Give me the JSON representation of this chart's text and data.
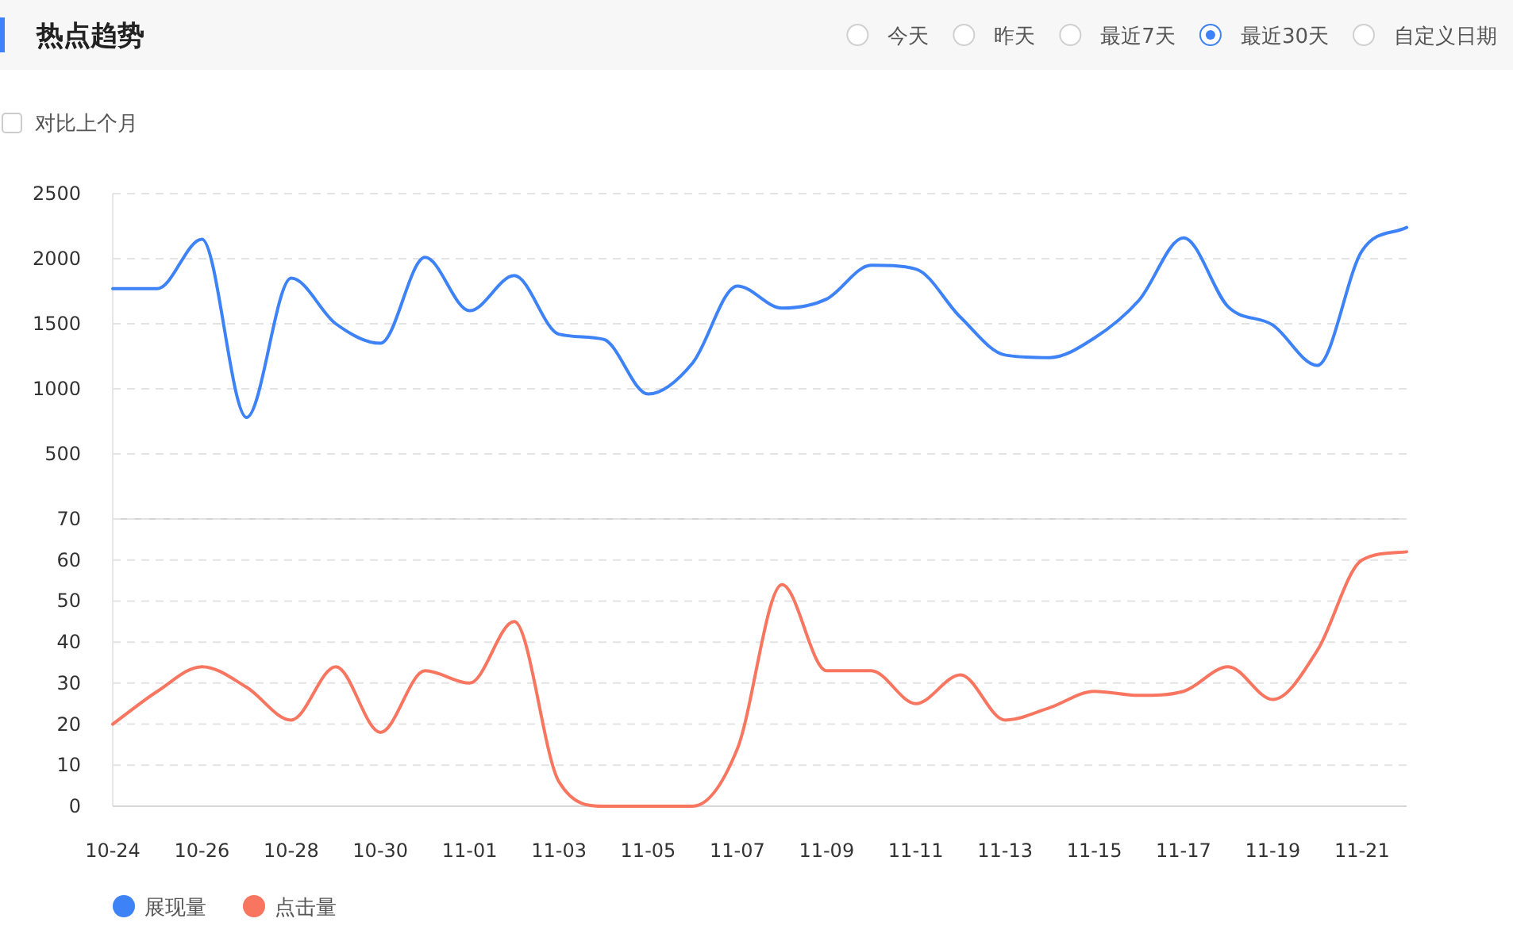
{
  "chart_data": [
    {
      "type": "line",
      "title": "热点趋势",
      "annotations": [
        "今天",
        "昨天",
        "最近7天",
        "最近30天",
        "自定义日期",
        "对比上个月"
      ],
      "series": [
        {
          "name": "展现量",
          "color": "#3d82f7",
          "values": [
            1770,
            1770,
            2150,
            780,
            1850,
            1500,
            1350,
            2010,
            1600,
            1870,
            1420,
            1380,
            960,
            1200,
            1790,
            1620,
            1690,
            1950,
            1920,
            1550,
            1260,
            1240,
            1390,
            1680,
            2160,
            1630,
            1490,
            1180,
            2060,
            2240
          ]
        }
      ],
      "ylim": [
        0,
        2500
      ],
      "yticks": [
        500,
        1000,
        1500,
        2000,
        2500
      ],
      "grid": "y",
      "legend": "bottom",
      "tick_labels": "y"
    },
    {
      "type": "line",
      "categories": [
        "10-24",
        null,
        "10-26",
        null,
        "10-28",
        null,
        "10-30",
        null,
        "11-01",
        null,
        "11-03",
        null,
        "11-05",
        null,
        "11-07",
        null,
        "11-09",
        null,
        "11-11",
        null,
        "11-13",
        null,
        "11-15",
        null,
        "11-17",
        null,
        "11-19",
        null,
        "11-21",
        null
      ],
      "series": [
        {
          "name": "点击量",
          "color": "#f87560",
          "values": [
            20,
            28,
            34,
            29,
            21,
            34,
            18,
            33,
            30,
            45,
            6,
            0,
            0,
            0,
            14,
            54,
            33,
            33,
            25,
            32,
            21,
            24,
            28,
            27,
            28,
            34,
            26,
            38,
            60,
            62
          ]
        }
      ],
      "ylim": [
        0,
        70
      ],
      "yticks": [
        0,
        10,
        20,
        30,
        40,
        50,
        60,
        70
      ],
      "grid": "y",
      "legend": "bottom"
    }
  ]
}
